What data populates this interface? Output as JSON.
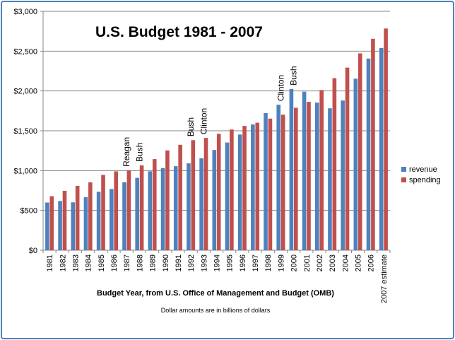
{
  "chart_data": {
    "type": "bar",
    "title": "U.S. Budget 1981 - 2007",
    "xlabel": "Budget Year, from U.S. Office of Management and Budget (OMB)",
    "note": "Dollar amounts are in billions of dollars",
    "ylabel": "",
    "ylim": [
      0,
      3000
    ],
    "yticks": [
      "$0",
      "$500",
      "$1,000",
      "$1,500",
      "$2,000",
      "$2,500",
      "$3,000"
    ],
    "grid": true,
    "legend_position": "right",
    "categories": [
      "1981",
      "1982",
      "1983",
      "1984",
      "1985",
      "1986",
      "1987",
      "1988",
      "1989",
      "1990",
      "1991",
      "1992",
      "1993",
      "1994",
      "1995",
      "1996",
      "1997",
      "1998",
      "1999",
      "2000",
      "2001",
      "2002",
      "2003",
      "2004",
      "2005",
      "2006",
      "2007 estimate"
    ],
    "series": [
      {
        "name": "revenue",
        "color": "#4f81bd",
        "values": [
          599,
          618,
          601,
          666,
          734,
          769,
          854,
          909,
          991,
          1032,
          1055,
          1091,
          1154,
          1259,
          1352,
          1453,
          1579,
          1722,
          1827,
          2025,
          1991,
          1853,
          1782,
          1880,
          2154,
          2407,
          2540
        ]
      },
      {
        "name": "spending",
        "color": "#c0504d",
        "values": [
          678,
          746,
          808,
          852,
          946,
          990,
          1004,
          1065,
          1144,
          1253,
          1324,
          1382,
          1410,
          1462,
          1516,
          1561,
          1601,
          1653,
          1702,
          1789,
          1863,
          2011,
          2160,
          2293,
          2472,
          2655,
          2784
        ]
      }
    ],
    "annotations": [
      {
        "text": "Reagan",
        "category": "1987"
      },
      {
        "text": "Bush",
        "category": "1988"
      },
      {
        "text": "Bush",
        "category": "1992"
      },
      {
        "text": "Clinton",
        "category": "1993"
      },
      {
        "text": "Clinton",
        "category": "1999"
      },
      {
        "text": "Bush",
        "category": "2000"
      }
    ]
  }
}
